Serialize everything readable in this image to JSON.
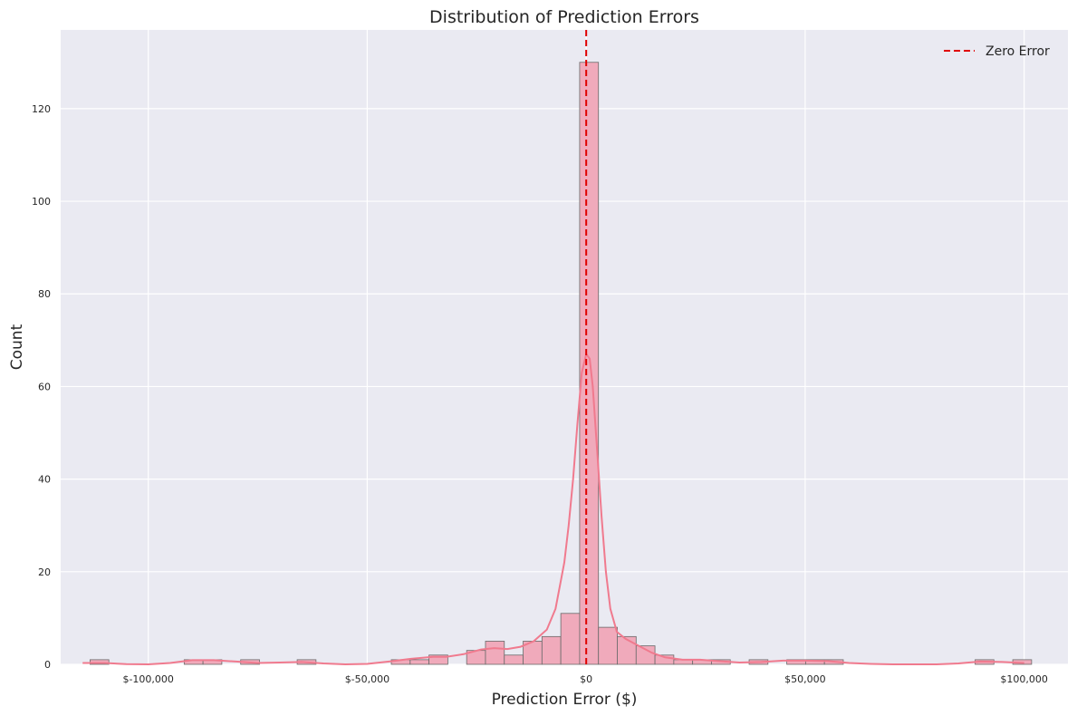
{
  "chart_data": {
    "type": "bar",
    "title": "Distribution of Prediction Errors",
    "xlabel": "Prediction Error ($)",
    "ylabel": "Count",
    "xlim": [
      -120000,
      110000
    ],
    "ylim": [
      0,
      137
    ],
    "x_ticks": [
      {
        "value": -100000,
        "label": "$-100,000"
      },
      {
        "value": -50000,
        "label": "$-50,000"
      },
      {
        "value": 0,
        "label": "$0"
      },
      {
        "value": 50000,
        "label": "$50,000"
      },
      {
        "value": 100000,
        "label": "$100,000"
      }
    ],
    "y_ticks": [
      0,
      20,
      40,
      60,
      80,
      100,
      120
    ],
    "grid": true,
    "bin_width": 4300,
    "bins": [
      {
        "x": -113300,
        "count": 1
      },
      {
        "x": -91800,
        "count": 1
      },
      {
        "x": -87500,
        "count": 1
      },
      {
        "x": -78900,
        "count": 1
      },
      {
        "x": -66000,
        "count": 1
      },
      {
        "x": -44500,
        "count": 1
      },
      {
        "x": -40200,
        "count": 1
      },
      {
        "x": -35900,
        "count": 2
      },
      {
        "x": -27300,
        "count": 3
      },
      {
        "x": -23000,
        "count": 5
      },
      {
        "x": -18700,
        "count": 2
      },
      {
        "x": -14400,
        "count": 5
      },
      {
        "x": -10100,
        "count": 6
      },
      {
        "x": -5800,
        "count": 11
      },
      {
        "x": -1500,
        "count": 130
      },
      {
        "x": 2800,
        "count": 8
      },
      {
        "x": 7100,
        "count": 6
      },
      {
        "x": 11400,
        "count": 4
      },
      {
        "x": 15700,
        "count": 2
      },
      {
        "x": 20000,
        "count": 1
      },
      {
        "x": 24300,
        "count": 1
      },
      {
        "x": 28600,
        "count": 1
      },
      {
        "x": 37200,
        "count": 1
      },
      {
        "x": 45800,
        "count": 1
      },
      {
        "x": 50100,
        "count": 1
      },
      {
        "x": 54400,
        "count": 1
      },
      {
        "x": 88800,
        "count": 1
      },
      {
        "x": 97400,
        "count": 1
      }
    ],
    "kde": [
      [
        -115000,
        0.3
      ],
      [
        -110000,
        0.3
      ],
      [
        -105000,
        0.05
      ],
      [
        -100000,
        0.0
      ],
      [
        -95000,
        0.3
      ],
      [
        -90000,
        0.9
      ],
      [
        -85000,
        0.9
      ],
      [
        -80000,
        0.6
      ],
      [
        -75000,
        0.3
      ],
      [
        -70000,
        0.4
      ],
      [
        -65000,
        0.5
      ],
      [
        -60000,
        0.2
      ],
      [
        -55000,
        0.0
      ],
      [
        -50000,
        0.1
      ],
      [
        -45000,
        0.6
      ],
      [
        -40000,
        1.2
      ],
      [
        -35000,
        1.6
      ],
      [
        -32000,
        1.6
      ],
      [
        -28000,
        2.2
      ],
      [
        -24000,
        3.2
      ],
      [
        -21000,
        3.5
      ],
      [
        -18000,
        3.3
      ],
      [
        -15000,
        3.8
      ],
      [
        -12000,
        5.0
      ],
      [
        -9000,
        7.5
      ],
      [
        -7000,
        12
      ],
      [
        -5000,
        22
      ],
      [
        -4000,
        30
      ],
      [
        -3000,
        40
      ],
      [
        -2000,
        52
      ],
      [
        -1000,
        63
      ],
      [
        0,
        67
      ],
      [
        800,
        66
      ],
      [
        1500,
        60
      ],
      [
        2500,
        46
      ],
      [
        3500,
        32
      ],
      [
        4500,
        20
      ],
      [
        5500,
        12
      ],
      [
        7000,
        7
      ],
      [
        9000,
        5.5
      ],
      [
        12000,
        4.0
      ],
      [
        15000,
        2.5
      ],
      [
        18000,
        1.5
      ],
      [
        22000,
        1.0
      ],
      [
        26000,
        1.0
      ],
      [
        30000,
        0.7
      ],
      [
        35000,
        0.4
      ],
      [
        40000,
        0.5
      ],
      [
        45000,
        0.8
      ],
      [
        50000,
        0.8
      ],
      [
        55000,
        0.7
      ],
      [
        60000,
        0.3
      ],
      [
        65000,
        0.1
      ],
      [
        70000,
        0.0
      ],
      [
        80000,
        0.0
      ],
      [
        85000,
        0.2
      ],
      [
        90000,
        0.6
      ],
      [
        95000,
        0.5
      ],
      [
        100000,
        0.3
      ]
    ],
    "reference_line": {
      "x": 0,
      "label": "Zero Error",
      "color": "#e00000"
    },
    "legend": {
      "position": "top-right",
      "entries": [
        "Zero Error"
      ]
    },
    "colors": {
      "bar_fill": "#f0aabb",
      "bar_edge": "#6a6a6a",
      "kde_line": "#f07a8e",
      "plot_bg": "#eaeaf2",
      "grid": "#ffffff"
    }
  }
}
